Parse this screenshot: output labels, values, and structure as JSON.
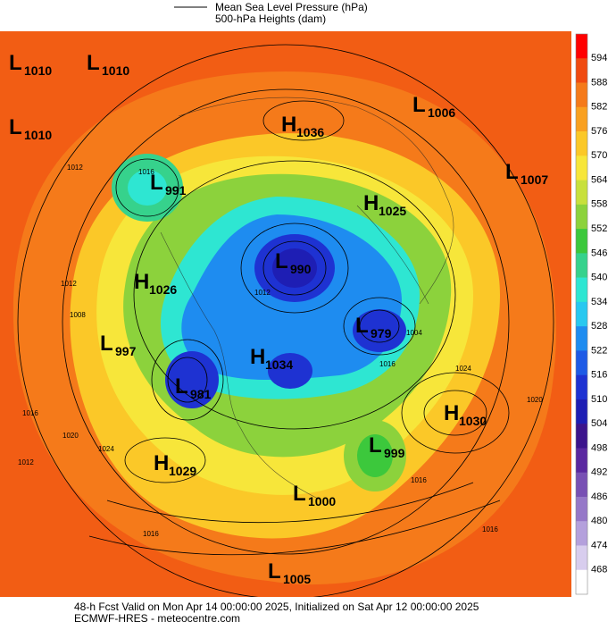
{
  "header": {
    "legend_line": "Mean Sea Level Pressure (hPa)",
    "legend_fill": "500-hPa Heights (dam)"
  },
  "centers": [
    {
      "type": "L",
      "value": "1010"
    },
    {
      "type": "L",
      "value": "1010"
    },
    {
      "type": "L",
      "value": "1010"
    },
    {
      "type": "H",
      "value": "1036"
    },
    {
      "type": "L",
      "value": "1006"
    },
    {
      "type": "L",
      "value": "1007"
    },
    {
      "type": "L",
      "value": "991"
    },
    {
      "type": "H",
      "value": "1025"
    },
    {
      "type": "L",
      "value": "990"
    },
    {
      "type": "H",
      "value": "1026"
    },
    {
      "type": "L",
      "value": "979"
    },
    {
      "type": "L",
      "value": "997"
    },
    {
      "type": "H",
      "value": "1034"
    },
    {
      "type": "L",
      "value": "981"
    },
    {
      "type": "H",
      "value": "1030"
    },
    {
      "type": "L",
      "value": "999"
    },
    {
      "type": "H",
      "value": "1029"
    },
    {
      "type": "L",
      "value": "1000"
    },
    {
      "type": "L",
      "value": "1005"
    }
  ],
  "isobar_labels": [
    "1012",
    "1016",
    "1012",
    "1008",
    "1016",
    "1020",
    "1024",
    "1012",
    "1016",
    "1024",
    "1020",
    "1016",
    "1012",
    "1016",
    "1004",
    "1016"
  ],
  "colorbar": {
    "labels": [
      "594",
      "588",
      "582",
      "576",
      "570",
      "564",
      "558",
      "552",
      "546",
      "540",
      "534",
      "528",
      "522",
      "516",
      "510",
      "504",
      "498",
      "492",
      "486",
      "480",
      "474",
      "468"
    ],
    "colors": [
      "#ff0000",
      "#f04a10",
      "#f57a1a",
      "#f9a020",
      "#fbc828",
      "#f7e63a",
      "#c8e03c",
      "#8cd23c",
      "#3cc83c",
      "#36d28c",
      "#2ee6d2",
      "#28c8f0",
      "#1e8cf0",
      "#1e5ae6",
      "#1e32d2",
      "#1e1eb4",
      "#3c148c",
      "#5a28a0",
      "#7850b4",
      "#9678c8",
      "#b4a0dc",
      "#d8cdee",
      "#ffffff"
    ]
  },
  "footer": {
    "line1": "48-h Fcst Valid on Mon Apr 14 00:00:00 2025, Initialized on Sat Apr 12 00:00:00 2025",
    "line2": "ECMWF-HRES  - meteocentre.com"
  }
}
